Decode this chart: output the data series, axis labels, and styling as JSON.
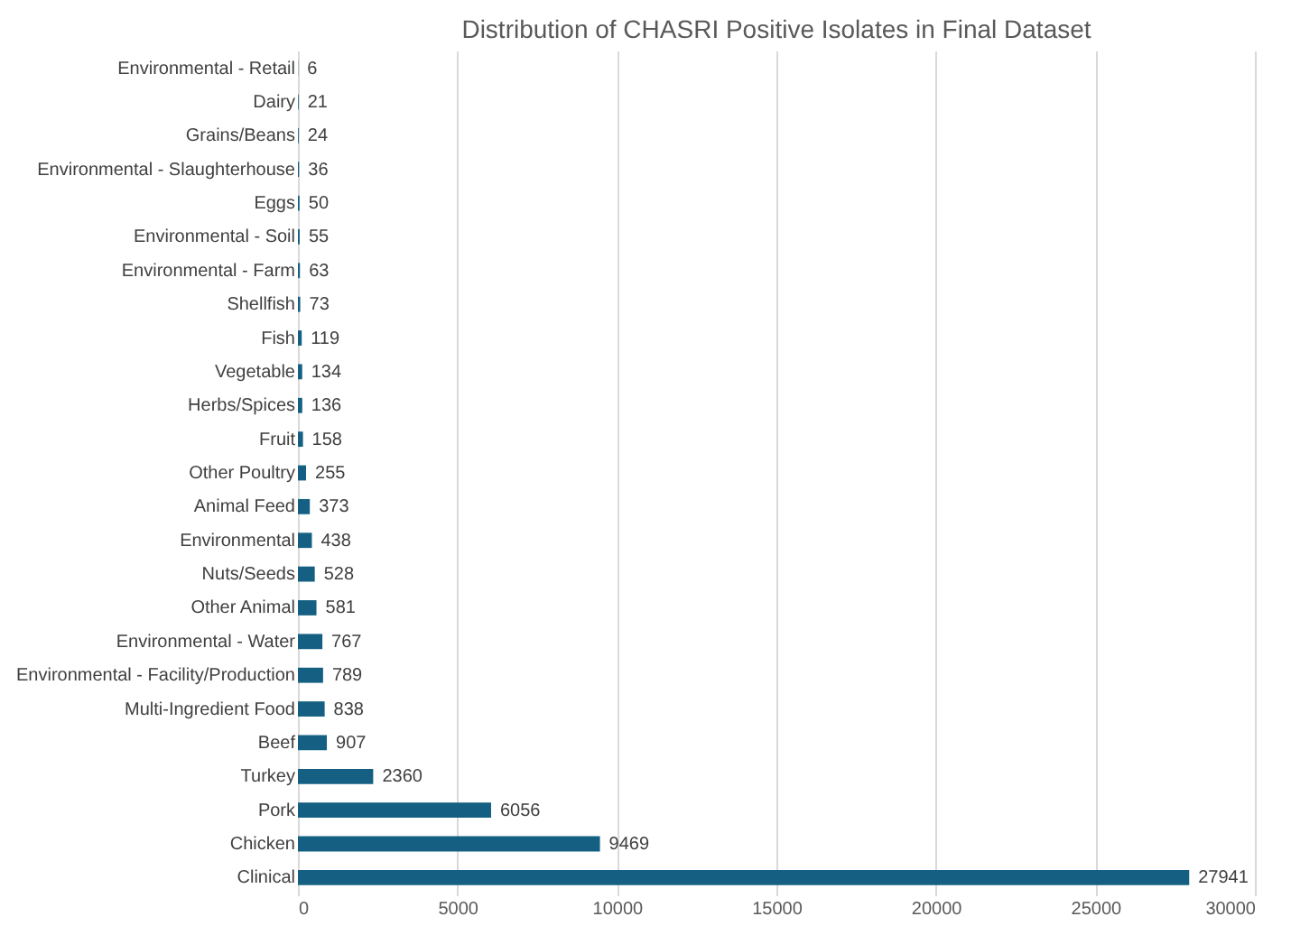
{
  "chart_data": {
    "type": "bar",
    "orientation": "horizontal",
    "title": "Distribution of CHASRI Positive Isolates in Final Dataset",
    "categories": [
      "Environmental - Retail",
      "Dairy",
      "Grains/Beans",
      "Environmental - Slaughterhouse",
      "Eggs",
      "Environmental - Soil",
      "Environmental - Farm",
      "Shellfish",
      "Fish",
      "Vegetable",
      "Herbs/Spices",
      "Fruit",
      "Other Poultry",
      "Animal Feed",
      "Environmental",
      "Nuts/Seeds",
      "Other Animal",
      "Environmental - Water",
      "Environmental - Facility/Production",
      "Multi-Ingredient Food",
      "Beef",
      "Turkey",
      "Pork",
      "Chicken",
      "Clinical"
    ],
    "values": [
      6,
      21,
      24,
      36,
      50,
      55,
      63,
      73,
      119,
      134,
      136,
      158,
      255,
      373,
      438,
      528,
      581,
      767,
      789,
      838,
      907,
      2360,
      6056,
      9469,
      27941
    ],
    "color": "#156082",
    "xlim": [
      0,
      30000
    ],
    "xticks": [
      0,
      5000,
      10000,
      15000,
      20000,
      25000,
      30000
    ],
    "grid": "x",
    "data_labels": true
  }
}
